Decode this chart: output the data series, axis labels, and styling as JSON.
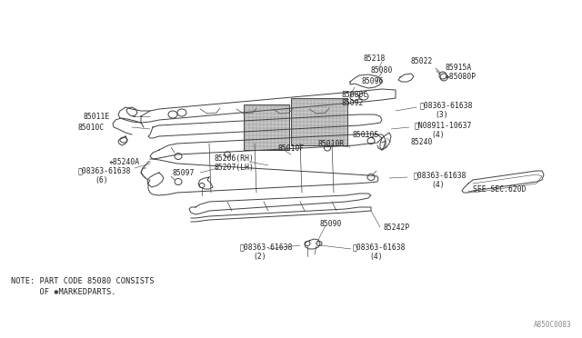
{
  "bg_color": "#ffffff",
  "fig_width": 6.4,
  "fig_height": 3.72,
  "dpi": 100,
  "diagram_code": "A850C0083",
  "note_line1": "NOTE: PART CODE 85080 CONSISTS",
  "note_line2": "      OF ✱MARKEDPARTS.",
  "see_sec": "SEE SEC.620D",
  "lc": "#404040",
  "tc": "#202020",
  "label_fs": 5.8,
  "note_fs": 6.2,
  "code_fs": 5.5,
  "lw": 0.7
}
